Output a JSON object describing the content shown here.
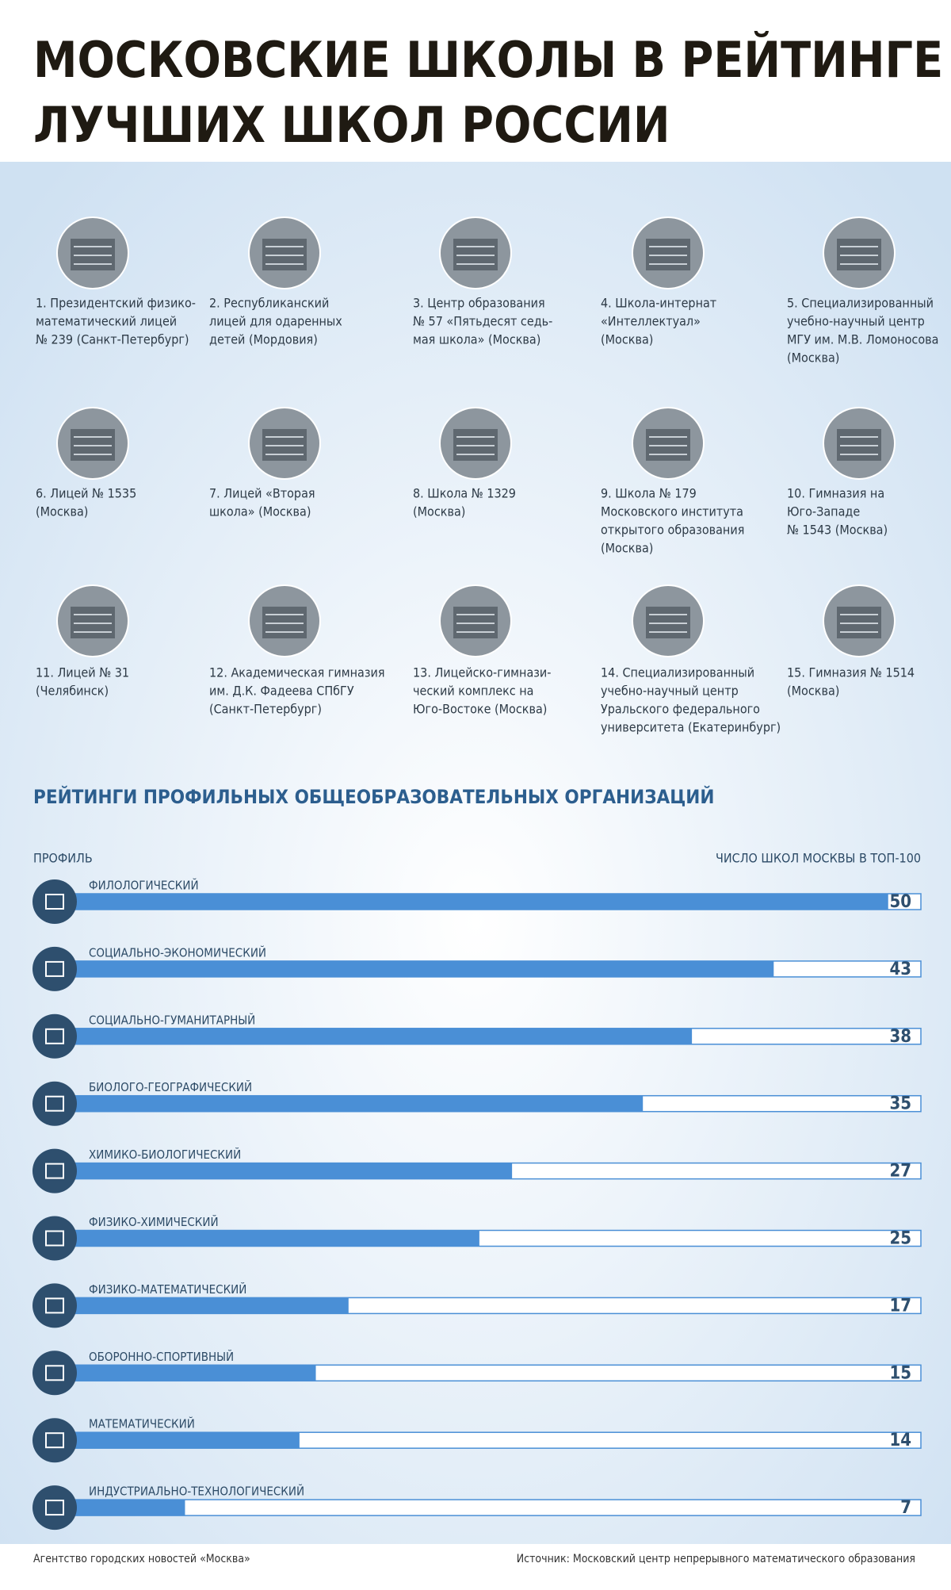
{
  "header": {
    "title": [
      "МОСКОВСКИЕ ШКОЛЫ В РЕЙТИНГЕ",
      "ЛУЧШИХ ШКОЛ РОССИИ"
    ]
  },
  "schools": [
    {
      "lines": [
        "1. Президентский физико-",
        "математический лицей",
        "№ 239 (Санкт-Петербург)"
      ]
    },
    {
      "lines": [
        "2. Республиканский",
        "лицей для одаренных",
        "детей (Мордовия)"
      ]
    },
    {
      "lines": [
        "3. Центр образования",
        "№ 57 «Пятьдесят седь-",
        "мая школа» (Москва)"
      ]
    },
    {
      "lines": [
        "4. Школа-интернат",
        "«Интеллектуал»",
        "(Москва)"
      ]
    },
    {
      "lines": [
        "5. Специализированный",
        "учебно-научный центр",
        "МГУ им. М.В. Ломоносова",
        "(Москва)"
      ]
    },
    {
      "lines": [
        "6. Лицей № 1535",
        "(Москва)"
      ]
    },
    {
      "lines": [
        "7. Лицей «Вторая",
        "школа» (Москва)"
      ]
    },
    {
      "lines": [
        "8. Школа № 1329",
        "(Москва)"
      ]
    },
    {
      "lines": [
        "9. Школа № 179",
        "Московского института",
        "открытого образования",
        "(Москва)"
      ]
    },
    {
      "lines": [
        "10. Гимназия на",
        "Юго-Западе",
        "№ 1543 (Москва)"
      ]
    },
    {
      "lines": [
        "11. Лицей № 31",
        "(Челябинск)"
      ]
    },
    {
      "lines": [
        "12. Академическая гимназия",
        "им. Д.К. Фадеева СПбГУ",
        "(Санкт-Петербург)"
      ]
    },
    {
      "lines": [
        "13. Лицейско-гимнази-",
        "ческий комплекс на",
        "Юго-Востоке (Москва)"
      ]
    },
    {
      "lines": [
        "14. Специализированный",
        "учебно-научный центр",
        "Уральского федерального",
        "университета (Екатеринбург)"
      ]
    },
    {
      "lines": [
        "15. Гимназия № 1514",
        "(Москва)"
      ]
    }
  ],
  "chart_data": {
    "type": "bar",
    "title": "РЕЙТИНГИ ПРОФИЛЬНЫХ ОБЩЕОБРАЗОВАТЕЛЬНЫХ ОРГАНИЗАЦИЙ",
    "category_label": "ПРОФИЛЬ",
    "value_label": "ЧИСЛО ШКОЛ МОСКВЫ В ТОП-100",
    "categories": [
      "ФИЛОЛОГИЧЕСКИЙ",
      "СОЦИАЛЬНО-ЭКОНОМИЧЕСКИЙ",
      "СОЦИАЛЬНО-ГУМАНИТАРНЫЙ",
      "БИОЛОГО-ГЕОГРАФИЧЕСКИЙ",
      "ХИМИКО-БИОЛОГИЧЕСКИЙ",
      "ФИЗИКО-ХИМИЧЕСКИЙ",
      "ФИЗИКО-МАТЕМАТИЧЕСКИЙ",
      "ОБОРОННО-СПОРТИВНЫЙ",
      "МАТЕМАТИЧЕСКИЙ",
      "ИНДУСТРИАЛЬНО-ТЕХНОЛОГИЧЕСКИЙ"
    ],
    "values": [
      50,
      43,
      38,
      35,
      27,
      25,
      17,
      15,
      14,
      7
    ],
    "color": "#4a8fd6",
    "xlim": [
      0,
      52
    ]
  },
  "footer": {
    "left": "Агентство городских новостей «Москва»",
    "right": "Источник: Московский центр непрерывного математического образования"
  }
}
